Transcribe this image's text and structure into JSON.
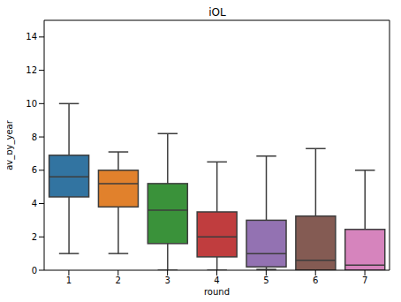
{
  "chart_data": {
    "type": "box",
    "title": "iOL",
    "x_label": "round",
    "y_label": "av_by_year",
    "categories": [
      "1",
      "2",
      "3",
      "4",
      "5",
      "6",
      "7"
    ],
    "whisker_low": [
      1.0,
      1.0,
      0.0,
      0.0,
      0.05,
      0.0,
      0.0
    ],
    "q1": [
      4.4,
      3.8,
      1.6,
      0.8,
      0.2,
      0.0,
      0.0
    ],
    "median": [
      5.6,
      5.2,
      3.6,
      2.0,
      1.0,
      0.6,
      0.3
    ],
    "q3": [
      6.9,
      6.0,
      5.2,
      3.5,
      3.0,
      3.25,
      2.45
    ],
    "whisker_high": [
      10.0,
      7.1,
      8.2,
      6.5,
      6.85,
      7.3,
      6.0
    ],
    "colors": [
      "#3274a1",
      "#e1812c",
      "#3a923a",
      "#c03d3e",
      "#9372b2",
      "#845b53",
      "#d684bd"
    ],
    "ylim": [
      0,
      15
    ],
    "yticks": [
      0,
      2,
      4,
      6,
      8,
      10,
      12,
      14
    ],
    "grid": false
  }
}
